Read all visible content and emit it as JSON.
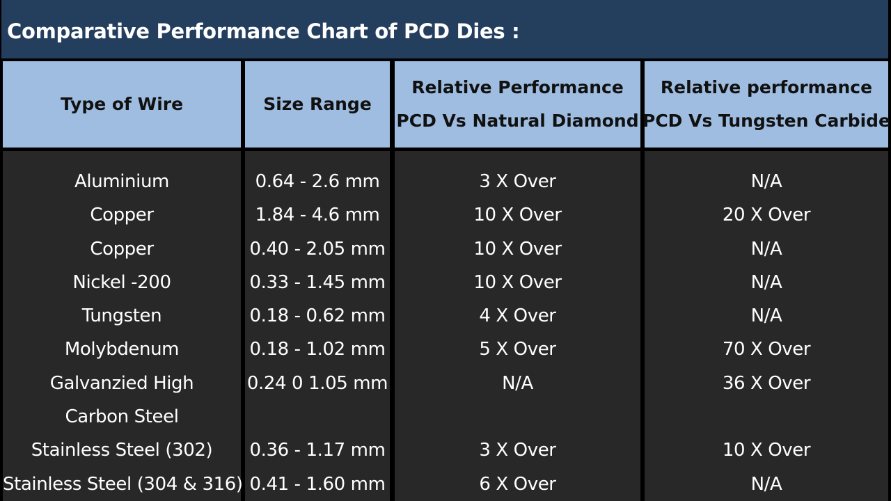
{
  "title": "Comparative Performance Chart of PCD Dies :",
  "columns": {
    "type": [
      "Type of Wire"
    ],
    "size": [
      "Size Range"
    ],
    "natural": [
      "Relative Performance",
      "PCD Vs Natural Diamond"
    ],
    "carbide": [
      "Relative performance",
      "PCD Vs Tungsten Carbide"
    ]
  },
  "rows": [
    {
      "type": "Aluminium",
      "size": "0.64 - 2.6 mm",
      "natural": "3 X Over",
      "carbide": "N/A"
    },
    {
      "type": "Copper",
      "size": "1.84 - 4.6 mm",
      "natural": "10 X Over",
      "carbide": "20 X Over"
    },
    {
      "type": "Copper",
      "size": "0.40 - 2.05 mm",
      "natural": "10 X Over",
      "carbide": "N/A"
    },
    {
      "type": "Nickel -200",
      "size": "0.33 - 1.45 mm",
      "natural": "10 X Over",
      "carbide": "N/A"
    },
    {
      "type": "Tungsten",
      "size": "0.18 - 0.62 mm",
      "natural": "4 X Over",
      "carbide": "N/A"
    },
    {
      "type": "Molybdenum",
      "size": "0.18 - 1.02 mm",
      "natural": "5 X Over",
      "carbide": "70 X Over"
    },
    {
      "type": "Galvanzied High",
      "size": "0.24 0 1.05 mm",
      "natural": "N/A",
      "carbide": "36 X Over"
    },
    {
      "type": "Carbon Steel",
      "size": "",
      "natural": "",
      "carbide": ""
    },
    {
      "type": "Stainless Steel (302)",
      "size": "0.36 - 1.17 mm",
      "natural": "3 X Over",
      "carbide": "10 X Over"
    },
    {
      "type": "Stainless Steel (304 & 316)",
      "size": "0.41 - 1.60 mm",
      "natural": "6 X Over",
      "carbide": "N/A"
    }
  ],
  "colors": {
    "title_bg": "#243e5e",
    "header_bg": "#9fbde1",
    "body_bg": "#282828",
    "grid": "#000000"
  }
}
